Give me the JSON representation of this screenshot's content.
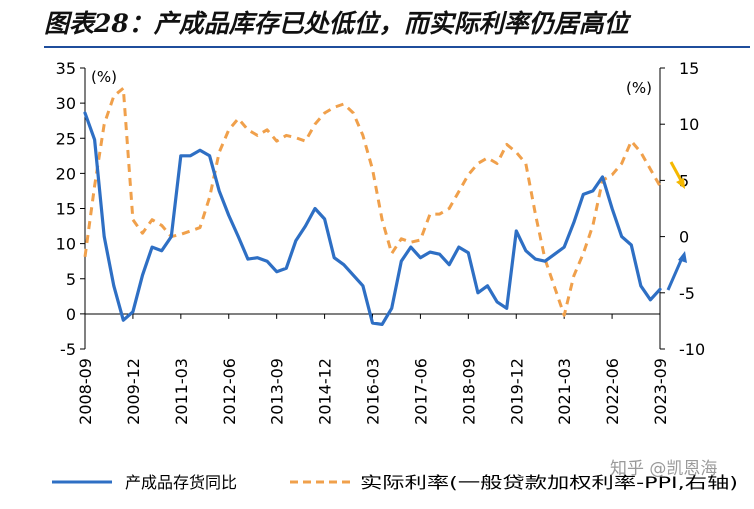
{
  "title": "图表28：产成品库存已处低位，而实际利率仍居高位",
  "watermark": "知乎 @凯恩海",
  "chart_data": {
    "type": "line",
    "left_axis": {
      "unit": "(%)",
      "ylim": [
        -5,
        35
      ],
      "ticks": [
        -5,
        0,
        5,
        10,
        15,
        20,
        25,
        30,
        35
      ]
    },
    "right_axis": {
      "unit": "(%)",
      "ylim": [
        -10,
        15
      ],
      "ticks": [
        -10,
        -5,
        0,
        5,
        10,
        15
      ]
    },
    "x_tick_labels": [
      "2008-09",
      "2009-12",
      "2011-03",
      "2012-06",
      "2013-09",
      "2014-12",
      "2016-03",
      "2017-06",
      "2018-09",
      "2019-12",
      "2021-03",
      "2022-06",
      "2023-09"
    ],
    "grid": false,
    "legend_position": "bottom",
    "series": [
      {
        "name": "产成品存货同比",
        "axis": "left",
        "color": "#2e6fc4",
        "style": "solid",
        "x": [
          0,
          1,
          2,
          3,
          4,
          5,
          6,
          7,
          8,
          9,
          10,
          11,
          12,
          13,
          14,
          15,
          16,
          17,
          18,
          19,
          20,
          21,
          22,
          23,
          24,
          25,
          26,
          27,
          28,
          29,
          30,
          31,
          32,
          33,
          34,
          35,
          36,
          37,
          38,
          39,
          40,
          41,
          42,
          43,
          44,
          45,
          46,
          47,
          48,
          49,
          50,
          51,
          52,
          53,
          54,
          55,
          56,
          57,
          58,
          59,
          60
        ],
        "values": [
          28.6,
          24.8,
          11.0,
          4.0,
          -0.9,
          0.3,
          5.5,
          9.5,
          9.0,
          11.0,
          22.5,
          22.5,
          23.3,
          22.5,
          17.5,
          14.0,
          11.0,
          7.8,
          8.0,
          7.5,
          6.0,
          6.5,
          10.4,
          12.5,
          15.0,
          13.5,
          8.0,
          7.0,
          5.5,
          4.0,
          -1.3,
          -1.5,
          0.8,
          7.5,
          9.5,
          8.0,
          8.8,
          8.5,
          7.0,
          9.5,
          8.7,
          3.0,
          4.0,
          1.7,
          0.8,
          11.8,
          9.0,
          7.8,
          7.5,
          8.5,
          9.5,
          13.0,
          17.0,
          17.5,
          19.5,
          15.0,
          11.0,
          9.8,
          4.0,
          2.0,
          3.5
        ]
      },
      {
        "name": "实际利率(一般贷款加权利率-PPI,右轴)",
        "axis": "right",
        "color": "#f0a04b",
        "style": "dashed",
        "x": [
          0,
          1,
          2,
          3,
          4,
          5,
          6,
          7,
          8,
          9,
          10,
          11,
          12,
          13,
          14,
          15,
          16,
          17,
          18,
          19,
          20,
          21,
          22,
          23,
          24,
          25,
          26,
          27,
          28,
          29,
          30,
          31,
          32,
          33,
          34,
          35,
          36,
          37,
          38,
          39,
          40,
          41,
          42,
          43,
          44,
          45,
          46,
          47,
          48,
          49,
          50,
          51,
          52,
          53,
          54,
          55,
          56,
          57,
          58,
          59,
          60
        ],
        "values": [
          -1.8,
          4.5,
          10.0,
          12.5,
          13.2,
          1.5,
          0.3,
          1.5,
          1.0,
          0.0,
          0.2,
          0.5,
          0.8,
          3.5,
          7.5,
          9.5,
          10.5,
          9.5,
          9.0,
          9.5,
          8.5,
          9.0,
          8.8,
          8.5,
          10.0,
          11.0,
          11.5,
          11.8,
          11.0,
          9.0,
          6.0,
          1.5,
          -1.5,
          -0.2,
          -0.5,
          -0.3,
          2.0,
          2.0,
          2.5,
          4.0,
          5.5,
          6.5,
          7.0,
          6.5,
          8.2,
          7.5,
          6.5,
          2.0,
          -2.0,
          -4.5,
          -7.0,
          -3.5,
          -1.5,
          1.0,
          5.0,
          5.5,
          6.5,
          8.5,
          7.5,
          6.0,
          4.5
        ]
      }
    ]
  }
}
